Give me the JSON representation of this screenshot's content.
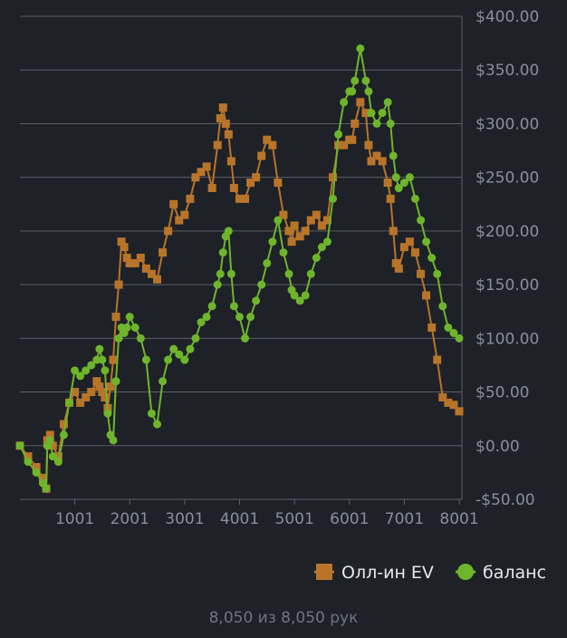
{
  "chart_data": {
    "type": "line",
    "title": "",
    "xlabel": "",
    "ylabel": "",
    "xlim": [
      1,
      8050
    ],
    "ylim": [
      -50,
      400
    ],
    "x_ticks": [
      1001,
      2001,
      3001,
      4001,
      5001,
      6001,
      7001,
      8001
    ],
    "x_tick_labels": [
      "1001",
      "2001",
      "3001",
      "4001",
      "5001",
      "6001",
      "7001",
      "8001"
    ],
    "y_ticks": [
      -50,
      0,
      50,
      100,
      150,
      200,
      250,
      300,
      350,
      400
    ],
    "y_tick_labels": [
      "-$50.00",
      "$0.00",
      "$50.00",
      "$100.00",
      "$150.00",
      "$200.00",
      "$250.00",
      "$300.00",
      "$350.00",
      "$400.00"
    ],
    "grid": true,
    "legend_position": "bottom-right",
    "series": [
      {
        "name": "Олл-ин EV",
        "color": "#b8752a",
        "marker": "square",
        "x": [
          1,
          150,
          300,
          420,
          480,
          500,
          550,
          600,
          700,
          800,
          900,
          1000,
          1100,
          1200,
          1300,
          1400,
          1450,
          1500,
          1550,
          1600,
          1650,
          1700,
          1750,
          1800,
          1850,
          1900,
          1950,
          2000,
          2100,
          2200,
          2300,
          2400,
          2500,
          2600,
          2700,
          2800,
          2900,
          3000,
          3100,
          3200,
          3300,
          3400,
          3500,
          3600,
          3650,
          3700,
          3750,
          3800,
          3850,
          3900,
          4000,
          4100,
          4200,
          4300,
          4400,
          4500,
          4600,
          4700,
          4800,
          4900,
          4950,
          5000,
          5100,
          5200,
          5300,
          5400,
          5500,
          5600,
          5700,
          5800,
          5900,
          6000,
          6050,
          6100,
          6200,
          6300,
          6350,
          6400,
          6500,
          6600,
          6700,
          6750,
          6800,
          6850,
          6900,
          7000,
          7100,
          7200,
          7300,
          7400,
          7500,
          7600,
          7700,
          7800,
          7900,
          8000
        ],
        "values": [
          0,
          -10,
          -20,
          -30,
          -40,
          5,
          10,
          0,
          -10,
          20,
          40,
          50,
          40,
          45,
          50,
          60,
          55,
          50,
          45,
          35,
          55,
          80,
          120,
          150,
          190,
          185,
          175,
          170,
          170,
          175,
          165,
          160,
          155,
          180,
          200,
          225,
          210,
          215,
          230,
          250,
          255,
          260,
          240,
          280,
          305,
          315,
          300,
          290,
          265,
          240,
          230,
          230,
          245,
          250,
          270,
          285,
          280,
          245,
          215,
          200,
          190,
          205,
          195,
          200,
          210,
          215,
          205,
          210,
          250,
          280,
          280,
          285,
          285,
          300,
          320,
          310,
          280,
          265,
          270,
          265,
          245,
          230,
          200,
          170,
          165,
          185,
          190,
          180,
          160,
          140,
          110,
          80,
          45,
          40,
          38,
          32
        ]
      },
      {
        "name": "баланс",
        "color": "#6fb52c",
        "marker": "circle",
        "x": [
          1,
          150,
          300,
          420,
          480,
          500,
          550,
          600,
          700,
          800,
          900,
          1000,
          1100,
          1200,
          1300,
          1400,
          1450,
          1500,
          1550,
          1600,
          1650,
          1700,
          1750,
          1800,
          1850,
          1900,
          1950,
          2000,
          2100,
          2200,
          2300,
          2400,
          2500,
          2600,
          2700,
          2800,
          2900,
          3000,
          3100,
          3200,
          3300,
          3400,
          3500,
          3600,
          3650,
          3700,
          3750,
          3800,
          3850,
          3900,
          4000,
          4100,
          4200,
          4300,
          4400,
          4500,
          4600,
          4700,
          4800,
          4900,
          4950,
          5000,
          5100,
          5200,
          5300,
          5400,
          5500,
          5600,
          5700,
          5800,
          5900,
          6000,
          6050,
          6100,
          6200,
          6300,
          6350,
          6400,
          6500,
          6600,
          6700,
          6750,
          6800,
          6850,
          6900,
          7000,
          7100,
          7200,
          7300,
          7400,
          7500,
          7600,
          7700,
          7800,
          7900,
          8000
        ],
        "values": [
          0,
          -15,
          -25,
          -35,
          -40,
          0,
          5,
          -10,
          -15,
          10,
          40,
          70,
          65,
          70,
          75,
          80,
          90,
          80,
          70,
          30,
          10,
          5,
          60,
          100,
          110,
          105,
          110,
          120,
          110,
          100,
          80,
          30,
          20,
          60,
          80,
          90,
          85,
          80,
          90,
          100,
          115,
          120,
          130,
          150,
          160,
          180,
          195,
          200,
          160,
          130,
          120,
          100,
          120,
          135,
          150,
          170,
          190,
          210,
          180,
          160,
          145,
          140,
          135,
          140,
          160,
          175,
          185,
          190,
          230,
          290,
          320,
          330,
          330,
          340,
          370,
          340,
          330,
          310,
          300,
          310,
          320,
          300,
          270,
          250,
          240,
          245,
          250,
          230,
          210,
          190,
          175,
          160,
          130,
          110,
          105,
          100
        ]
      }
    ]
  },
  "footer": {
    "count_text": "8,050 из 8,050 рук"
  }
}
